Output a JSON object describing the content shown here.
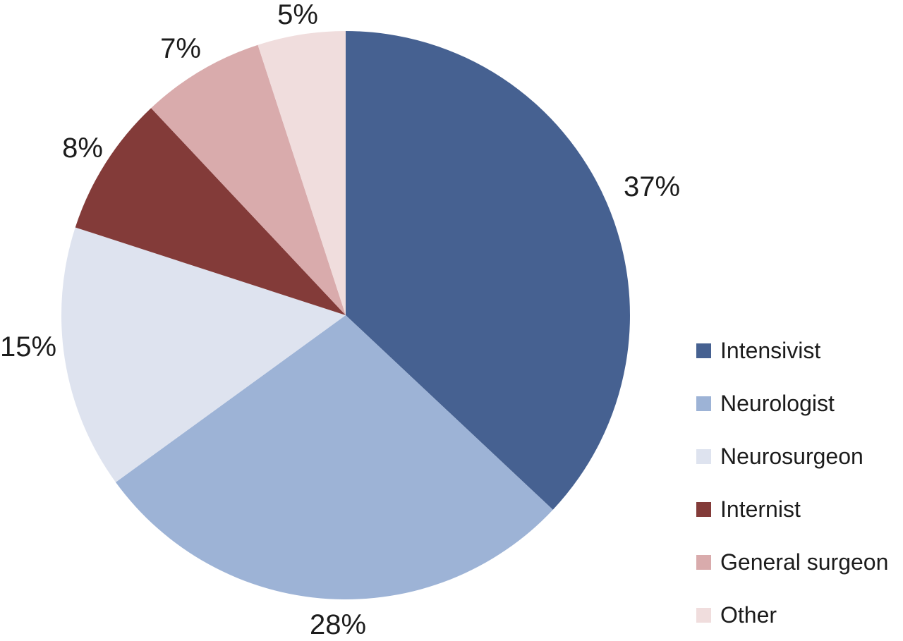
{
  "chart_data": {
    "type": "pie",
    "title": "",
    "categories": [
      "Intensivist",
      "Neurologist",
      "Neurosurgeon",
      "Internist",
      "General surgeon",
      "Other"
    ],
    "values": [
      37,
      28,
      15,
      8,
      7,
      5
    ],
    "unit": "%",
    "slice_labels": [
      "37%",
      "28%",
      "15%",
      "8%",
      "7%",
      "5%"
    ],
    "colors": [
      "#466191",
      "#9DB3D6",
      "#DEE3EF",
      "#833B39",
      "#D9ABAC",
      "#F0DDDD"
    ],
    "legend_position": "right",
    "start_angle_deg": 0,
    "direction": "clockwise",
    "text_color": "#1C1C1C",
    "background": "#FFFFFF"
  }
}
